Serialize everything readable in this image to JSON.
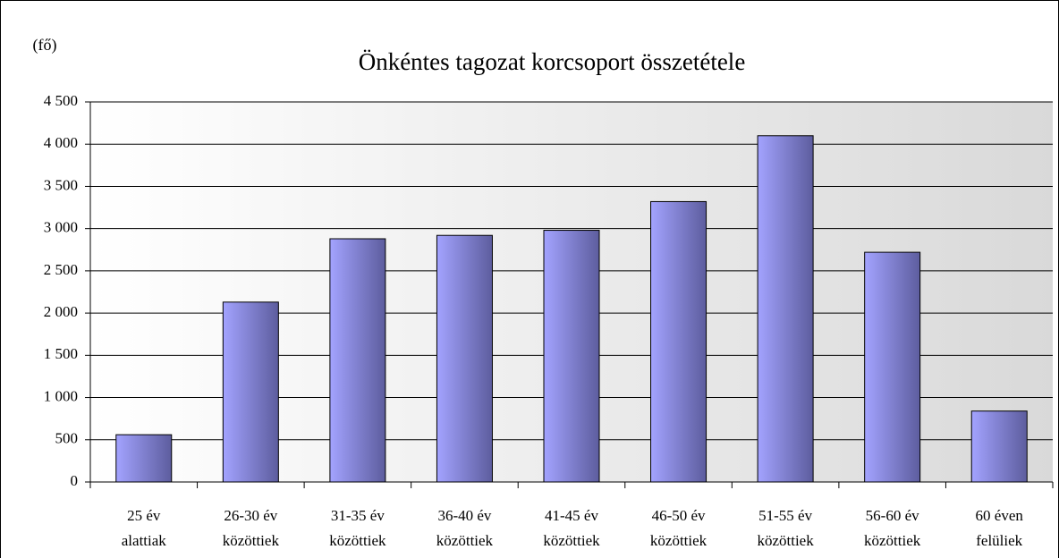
{
  "chart_data": {
    "type": "bar",
    "title": "Önkéntes tagozat korcsoport összetétele",
    "y_axis_label": "(fő)",
    "categories": [
      "25 év alattiak",
      "26-30 év közöttiek",
      "31-35 év közöttiek",
      "36-40 év közöttiek",
      "41-45 év közöttiek",
      "46-50 év közöttiek",
      "51-55 év közöttiek",
      "56-60 év közöttiek",
      "60 éven felüliek"
    ],
    "values": [
      560,
      2130,
      2880,
      2920,
      2980,
      3320,
      4100,
      2720,
      840
    ],
    "color": "#9999ff",
    "ylim": [
      0,
      4500
    ],
    "yticks": [
      0,
      500,
      {
        "value": 1000,
        "label": "1 000"
      },
      {
        "value": 1500,
        "label": "1 500"
      },
      {
        "value": 2000,
        "label": "2 000"
      },
      {
        "value": 2500,
        "label": "2 500"
      },
      {
        "value": 3000,
        "label": "3 000"
      },
      {
        "value": 3500,
        "label": "3 500"
      },
      {
        "value": 4000,
        "label": "4 000"
      },
      {
        "value": 4500,
        "label": "4 500"
      }
    ],
    "grid": true
  }
}
